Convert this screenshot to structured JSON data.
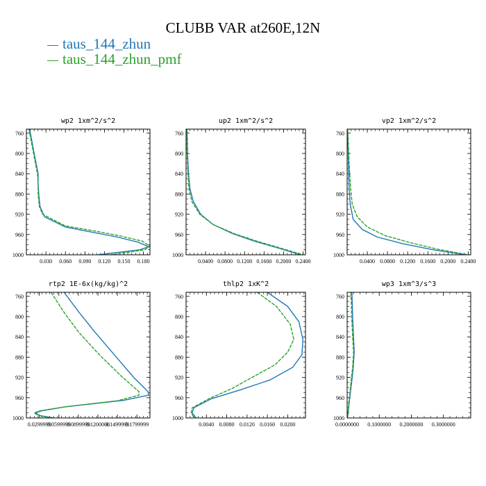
{
  "title": "CLUBB VAR at260E,12N",
  "legend": [
    {
      "label": "taus_144_zhun",
      "color": "#1f77b4"
    },
    {
      "label": "taus_144_zhun_pmf",
      "color": "#2ca02c"
    }
  ],
  "chart_data": [
    {
      "type": "line",
      "title": "wp2  1xm^2/s^2",
      "xlim": [
        0,
        0.19
      ],
      "ylim": [
        1000,
        752
      ],
      "y_inverted": true,
      "xticks": [
        0.03,
        0.06,
        0.09,
        0.12,
        0.15,
        0.18
      ],
      "xtick_labels": [
        "0.030",
        "0.060",
        "0.090",
        "0.120",
        "0.150",
        "0.180"
      ],
      "yticks": [
        760,
        800,
        840,
        880,
        920,
        960,
        1000
      ],
      "series": [
        {
          "name": "taus_144_zhun",
          "color": "#1f77b4",
          "x": [
            0.005,
            0.012,
            0.018,
            0.018,
            0.019,
            0.021,
            0.028,
            0.06,
            0.1,
            0.14,
            0.172,
            0.188,
            0.175,
            0.11
          ],
          "y": [
            752,
            800,
            840,
            860,
            880,
            905,
            925,
            945,
            955,
            965,
            975,
            984,
            990,
            1000
          ]
        },
        {
          "name": "taus_144_zhun_pmf",
          "color": "#2ca02c",
          "x": [
            0.004,
            0.011,
            0.017,
            0.018,
            0.018,
            0.02,
            0.025,
            0.06,
            0.105,
            0.145,
            0.178,
            0.19,
            0.182,
            0.13
          ],
          "y": [
            752,
            800,
            840,
            860,
            880,
            905,
            920,
            943,
            953,
            963,
            973,
            983,
            990,
            1000
          ]
        }
      ]
    },
    {
      "type": "line",
      "title": "up2  1xm^2/s^2",
      "xlim": [
        0,
        0.245
      ],
      "ylim": [
        1000,
        752
      ],
      "y_inverted": true,
      "xticks": [
        0.04,
        0.08,
        0.12,
        0.16,
        0.2,
        0.24
      ],
      "xtick_labels": [
        "0.0400",
        "0.0800",
        "0.1200",
        "0.1600",
        "0.2000",
        "0.2400"
      ],
      "yticks": [
        760,
        800,
        840,
        880,
        920,
        960,
        1000
      ],
      "series": [
        {
          "name": "taus_144_zhun",
          "color": "#1f77b4",
          "x": [
            0.002,
            0.003,
            0.005,
            0.008,
            0.015,
            0.03,
            0.055,
            0.095,
            0.14,
            0.19,
            0.235
          ],
          "y": [
            752,
            800,
            840,
            870,
            895,
            920,
            940,
            958,
            973,
            987,
            1000
          ]
        },
        {
          "name": "taus_144_zhun_pmf",
          "color": "#2ca02c",
          "x": [
            0.001,
            0.002,
            0.004,
            0.006,
            0.012,
            0.028,
            0.055,
            0.098,
            0.145,
            0.195,
            0.24
          ],
          "y": [
            752,
            800,
            840,
            870,
            895,
            920,
            940,
            958,
            973,
            987,
            1000
          ]
        }
      ]
    },
    {
      "type": "line",
      "title": "vp2  1xm^2/s^2",
      "xlim": [
        0,
        0.245
      ],
      "ylim": [
        1000,
        752
      ],
      "y_inverted": true,
      "xticks": [
        0.04,
        0.08,
        0.12,
        0.16,
        0.2,
        0.24
      ],
      "xtick_labels": [
        "0.0400",
        "0.0800",
        "0.1200",
        "0.1600",
        "0.2000",
        "0.2400"
      ],
      "yticks": [
        760,
        800,
        840,
        880,
        920,
        960,
        1000
      ],
      "series": [
        {
          "name": "taus_144_zhun",
          "color": "#1f77b4",
          "x": [
            0.001,
            0.002,
            0.003,
            0.004,
            0.006,
            0.012,
            0.03,
            0.06,
            0.11,
            0.17,
            0.235
          ],
          "y": [
            752,
            800,
            840,
            870,
            900,
            930,
            950,
            965,
            978,
            990,
            1000
          ]
        },
        {
          "name": "taus_144_zhun_pmf",
          "color": "#2ca02c",
          "x": [
            0.001,
            0.003,
            0.005,
            0.007,
            0.01,
            0.02,
            0.04,
            0.075,
            0.125,
            0.18,
            0.24
          ],
          "y": [
            752,
            800,
            840,
            870,
            900,
            925,
            945,
            962,
            976,
            989,
            1000
          ]
        }
      ]
    },
    {
      "type": "line",
      "title": "rtp2  1E-6x(kg/kg)^2",
      "xlim": [
        0.01,
        0.2
      ],
      "ylim": [
        1000,
        752
      ],
      "y_inverted": true,
      "xticks": [
        0.03,
        0.06,
        0.09,
        0.12,
        0.15,
        0.18
      ],
      "xtick_labels": [
        "0.0299999",
        "0.0599999",
        "0.0899999",
        "0.1200000",
        "0.1499999",
        "0.1799999"
      ],
      "yticks": [
        760,
        800,
        840,
        880,
        920,
        960,
        1000
      ],
      "series": [
        {
          "name": "taus_144_zhun",
          "color": "#1f77b4",
          "x": [
            0.068,
            0.09,
            0.115,
            0.145,
            0.175,
            0.197,
            0.198,
            0.16,
            0.07,
            0.033,
            0.024,
            0.03,
            0.052
          ],
          "y": [
            752,
            790,
            830,
            875,
            920,
            948,
            955,
            965,
            978,
            986,
            990,
            995,
            1000
          ]
        },
        {
          "name": "taus_144_zhun_pmf",
          "color": "#2ca02c",
          "x": [
            0.048,
            0.067,
            0.09,
            0.122,
            0.158,
            0.183,
            0.183,
            0.15,
            0.07,
            0.03,
            0.022,
            0.028,
            0.048
          ],
          "y": [
            752,
            790,
            830,
            875,
            920,
            948,
            955,
            966,
            978,
            986,
            990,
            995,
            1000
          ]
        }
      ]
    },
    {
      "type": "line",
      "title": "thlp2  1xK^2",
      "xlim": [
        0,
        0.0235
      ],
      "ylim": [
        1000,
        752
      ],
      "y_inverted": true,
      "xticks": [
        0.004,
        0.008,
        0.012,
        0.016,
        0.02
      ],
      "xtick_labels": [
        "0.0040",
        "0.0080",
        "0.0120",
        "0.0160",
        "0.0200"
      ],
      "yticks": [
        760,
        800,
        840,
        880,
        920,
        960,
        1000
      ],
      "series": [
        {
          "name": "taus_144_zhun",
          "color": "#1f77b4",
          "x": [
            0.016,
            0.02,
            0.0222,
            0.023,
            0.0228,
            0.021,
            0.0165,
            0.0105,
            0.005,
            0.0015,
            0.0012,
            0.002
          ],
          "y": [
            752,
            780,
            810,
            845,
            875,
            900,
            925,
            945,
            962,
            980,
            990,
            1000
          ]
        },
        {
          "name": "taus_144_zhun_pmf",
          "color": "#2ca02c",
          "x": [
            0.014,
            0.0178,
            0.0205,
            0.0212,
            0.02,
            0.0175,
            0.013,
            0.009,
            0.0045,
            0.0012,
            0.001,
            0.0016
          ],
          "y": [
            752,
            780,
            815,
            845,
            870,
            895,
            920,
            942,
            962,
            980,
            990,
            1000
          ]
        }
      ]
    },
    {
      "type": "line",
      "title": "wp3  1xm^3/s^3",
      "xlim": [
        0,
        0.385
      ],
      "ylim": [
        1000,
        752
      ],
      "y_inverted": true,
      "xticks": [
        0,
        0.1,
        0.2,
        0.3
      ],
      "xtick_labels": [
        "0.0000000",
        "0.1000000",
        "0.2000000",
        "0.3000000"
      ],
      "yticks": [
        760,
        800,
        840,
        880,
        920,
        960,
        1000
      ],
      "series": [
        {
          "name": "taus_144_zhun",
          "color": "#1f77b4",
          "x": [
            0.015,
            0.017,
            0.02,
            0.022,
            0.019,
            0.014,
            0.008,
            0.004,
            0.001
          ],
          "y": [
            752,
            800,
            840,
            870,
            900,
            930,
            960,
            985,
            1000
          ]
        },
        {
          "name": "taus_144_zhun_pmf",
          "color": "#2ca02c",
          "x": [
            0.012,
            0.014,
            0.017,
            0.02,
            0.017,
            0.012,
            0.007,
            0.003,
            0.001
          ],
          "y": [
            752,
            800,
            840,
            870,
            900,
            930,
            960,
            985,
            1000
          ]
        }
      ]
    }
  ]
}
